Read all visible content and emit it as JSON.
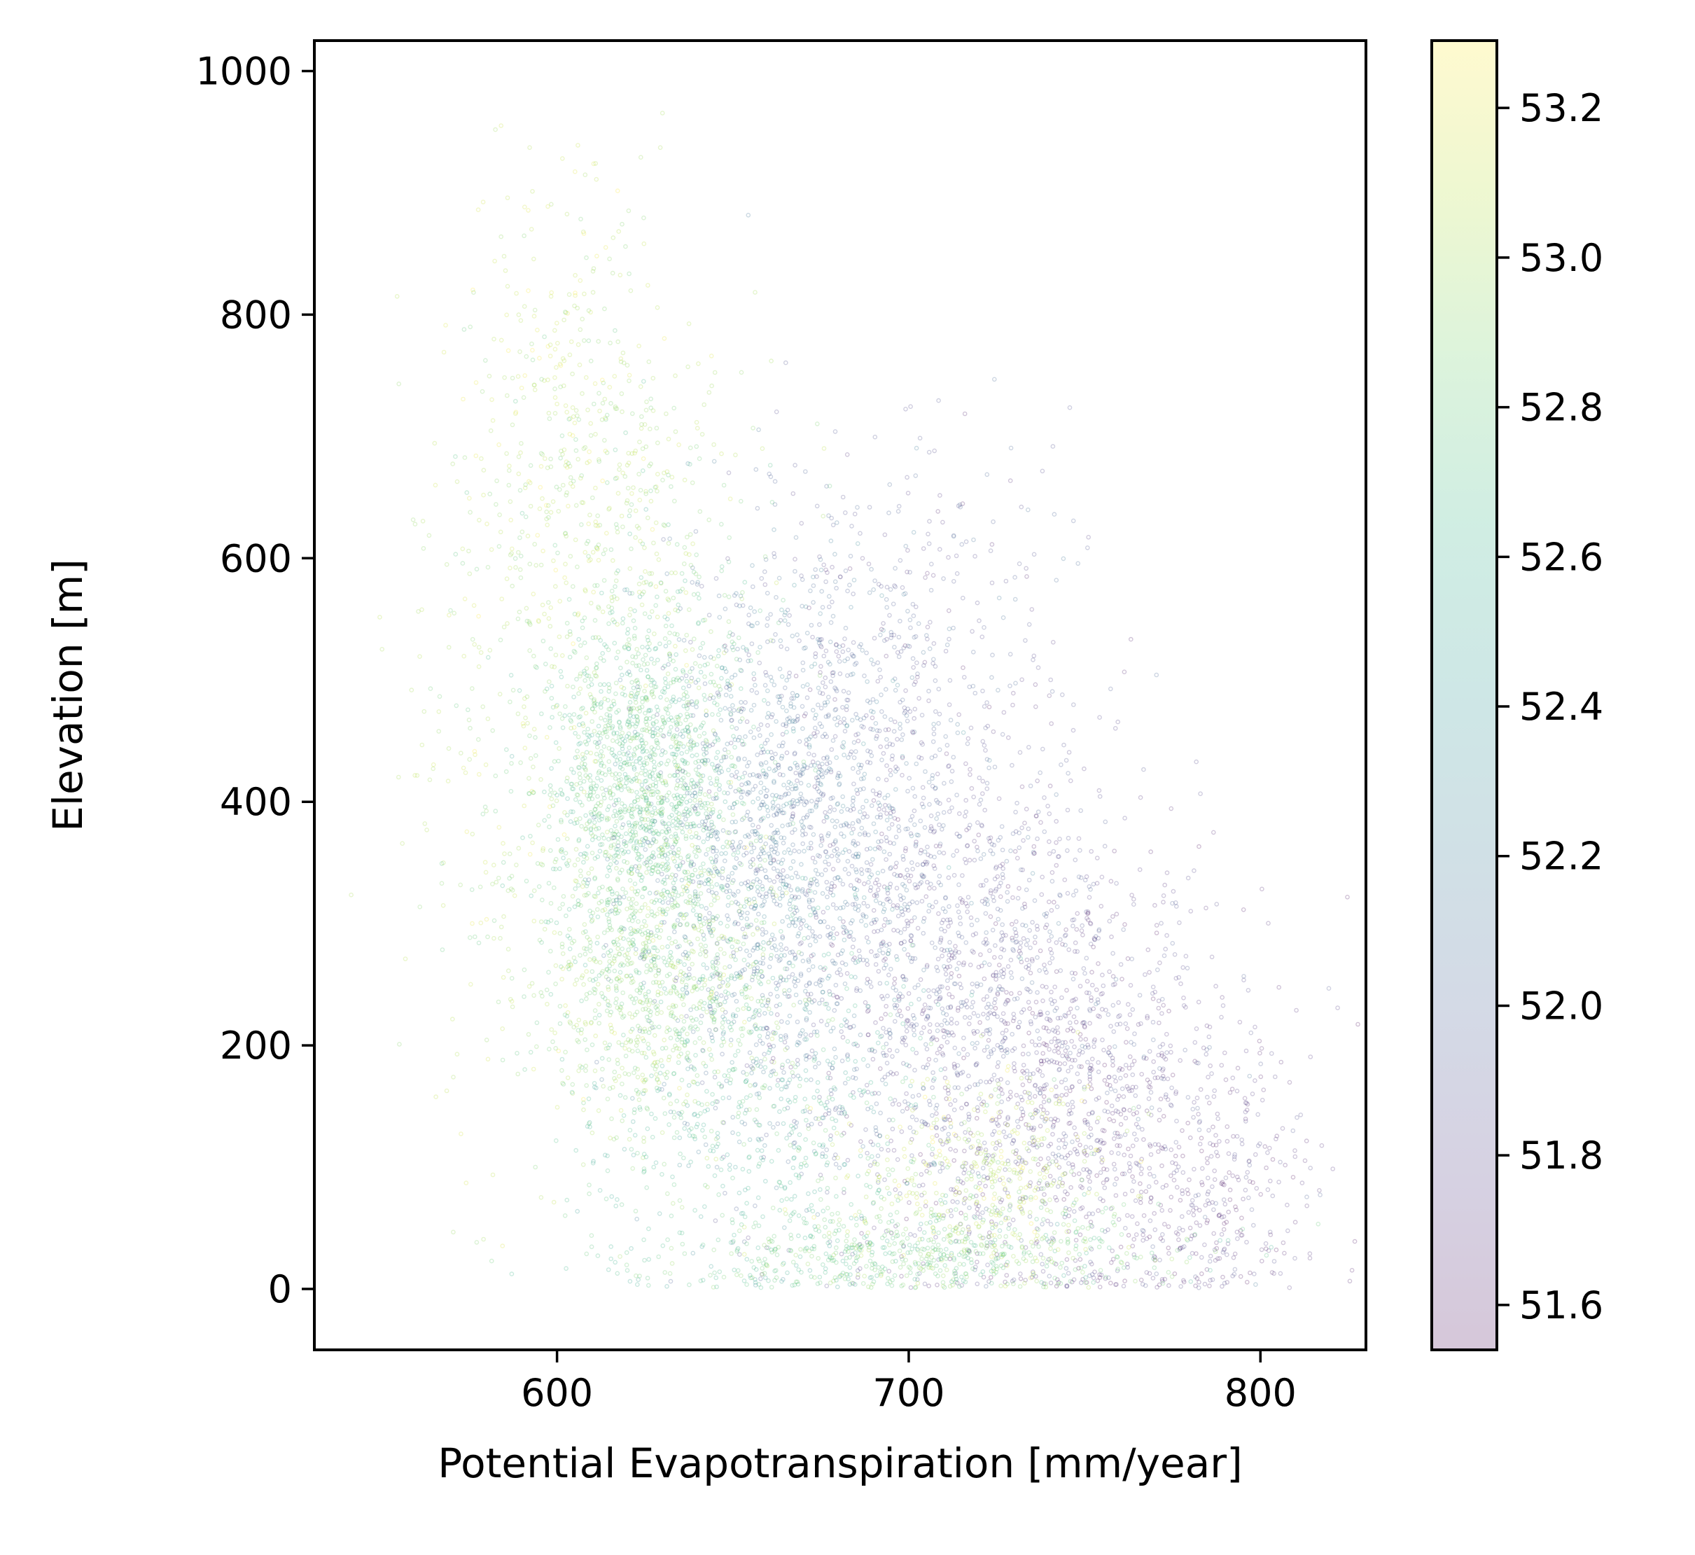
{
  "chart_data": {
    "type": "scatter",
    "title": "",
    "xlabel": "Potential Evapotranspiration [mm/year]",
    "ylabel": "Elevation [m]",
    "xlim": [
      531,
      830
    ],
    "ylim": [
      -50,
      1025
    ],
    "xticks": [
      600,
      700,
      800
    ],
    "yticks": [
      0,
      200,
      400,
      600,
      800,
      1000
    ],
    "grid": false,
    "legend": "none",
    "colormap": "viridis",
    "marker_alpha": 0.25,
    "colorbar": {
      "range": [
        51.54,
        53.29
      ],
      "ticks": [
        "51.6",
        "51.8",
        "52.0",
        "52.2",
        "52.4",
        "52.6",
        "52.8",
        "53.0",
        "53.2"
      ]
    },
    "point_groups": [
      {
        "x_center": 625,
        "y_center": 420,
        "x_spread": 14,
        "y_spread": 75,
        "color_value": 52.75,
        "count": 1500
      },
      {
        "x_center": 630,
        "y_center": 250,
        "x_spread": 18,
        "y_spread": 60,
        "color_value": 52.9,
        "count": 900
      },
      {
        "x_center": 615,
        "y_center": 640,
        "x_spread": 18,
        "y_spread": 90,
        "color_value": 52.95,
        "count": 450
      },
      {
        "x_center": 600,
        "y_center": 780,
        "x_spread": 15,
        "y_spread": 90,
        "color_value": 53.1,
        "count": 160
      },
      {
        "x_center": 665,
        "y_center": 350,
        "x_spread": 20,
        "y_spread": 110,
        "color_value": 52.1,
        "count": 1500
      },
      {
        "x_center": 690,
        "y_center": 520,
        "x_spread": 25,
        "y_spread": 90,
        "color_value": 51.9,
        "count": 500
      },
      {
        "x_center": 715,
        "y_center": 250,
        "x_spread": 25,
        "y_spread": 110,
        "color_value": 51.85,
        "count": 1400
      },
      {
        "x_center": 755,
        "y_center": 150,
        "x_spread": 25,
        "y_spread": 85,
        "color_value": 51.75,
        "count": 900
      },
      {
        "x_center": 785,
        "y_center": 60,
        "x_spread": 15,
        "y_spread": 45,
        "color_value": 51.7,
        "count": 200
      },
      {
        "x_center": 700,
        "y_center": 30,
        "x_spread": 40,
        "y_spread": 20,
        "color_value": 52.8,
        "count": 600
      },
      {
        "x_center": 720,
        "y_center": 90,
        "x_spread": 20,
        "y_spread": 40,
        "color_value": 53.05,
        "count": 400
      },
      {
        "x_center": 660,
        "y_center": 130,
        "x_spread": 25,
        "y_spread": 80,
        "color_value": 52.6,
        "count": 500
      },
      {
        "x_center": 585,
        "y_center": 420,
        "x_spread": 15,
        "y_spread": 150,
        "color_value": 53.0,
        "count": 220
      }
    ]
  }
}
